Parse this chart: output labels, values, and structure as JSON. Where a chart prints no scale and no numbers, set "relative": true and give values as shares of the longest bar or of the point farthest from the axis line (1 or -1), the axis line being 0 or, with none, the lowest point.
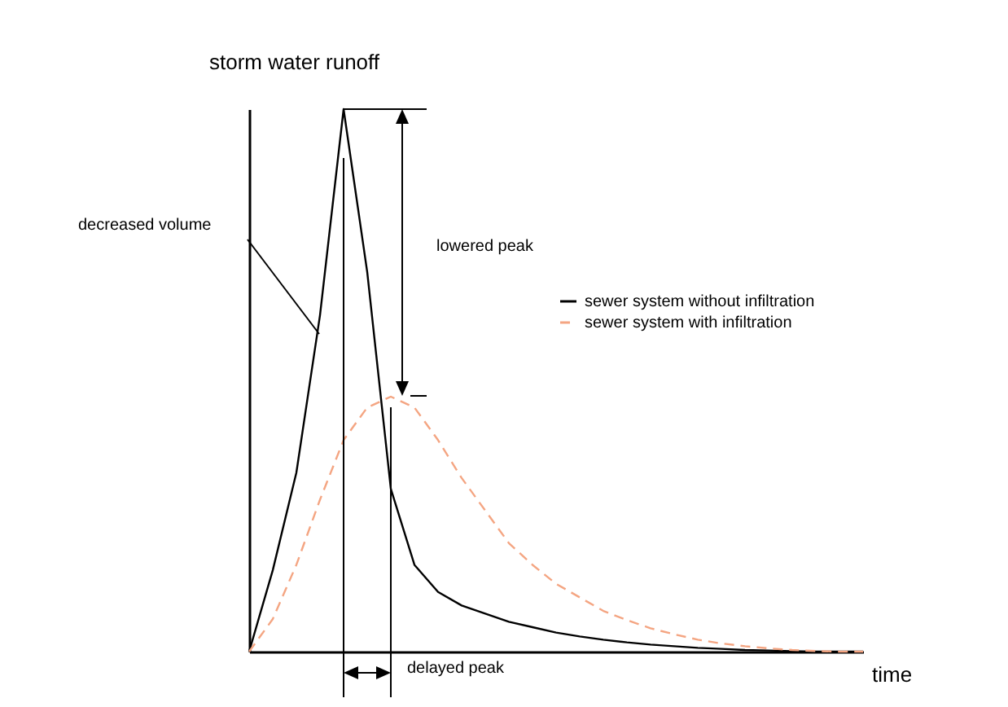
{
  "chart_data": {
    "type": "line",
    "relative": true,
    "xlabel": "time",
    "ylabel": "storm water runoff",
    "categories": [
      null,
      null,
      null,
      null,
      null,
      null,
      null,
      null,
      null,
      null,
      null,
      null,
      null,
      null,
      null,
      null,
      null,
      null,
      null,
      null,
      null,
      null,
      null,
      null,
      null,
      null,
      null
    ],
    "series": [
      {
        "name": "sewer system without infiltration",
        "color": "#000000",
        "line_style": "solid",
        "values": [
          0,
          0.15,
          0.33,
          0.62,
          1,
          0.7,
          0.3,
          0.16,
          0.11,
          0.085,
          0.07,
          0.055,
          0.045,
          0.035,
          0.028,
          0.022,
          0.017,
          0.013,
          0.01,
          0.007,
          0.005,
          0.003,
          0.002,
          0.001,
          0,
          0,
          0
        ]
      },
      {
        "name": "sewer system with infiltration",
        "color": "#f4a582",
        "line_style": "dashed",
        "values": [
          0,
          0.06,
          0.16,
          0.28,
          0.39,
          0.45,
          0.47,
          0.45,
          0.39,
          0.32,
          0.26,
          0.2,
          0.16,
          0.125,
          0.1,
          0.075,
          0.058,
          0.043,
          0.032,
          0.022,
          0.015,
          0.01,
          0.006,
          0.003,
          0.001,
          0,
          0
        ]
      }
    ],
    "legend": "right",
    "marker": "none",
    "annotations": [
      "decreased volume",
      "lowered peak",
      "delayed peak"
    ]
  }
}
